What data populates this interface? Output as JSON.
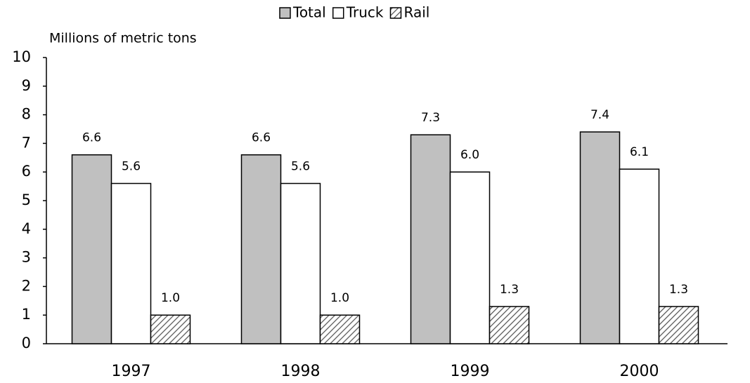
{
  "chart_data": {
    "type": "bar",
    "y_axis_label": "Millions of metric tons",
    "categories": [
      "1997",
      "1998",
      "1999",
      "2000"
    ],
    "series": [
      {
        "name": "Total",
        "color": "#c0c0c0",
        "values": [
          6.6,
          6.6,
          7.3,
          7.4
        ],
        "value_labels": [
          "6.6",
          "6.6",
          "7.3",
          "7.4"
        ]
      },
      {
        "name": "Truck",
        "color": "#ffffff",
        "values": [
          5.6,
          5.6,
          6.0,
          6.1
        ],
        "value_labels": [
          "5.6",
          "5.6",
          "6.0",
          "6.1"
        ]
      },
      {
        "name": "Rail",
        "color": "#555555",
        "hatch": true,
        "values": [
          1.0,
          1.0,
          1.3,
          1.3
        ],
        "value_labels": [
          "1.0",
          "1.0",
          "1.3",
          "1.3"
        ]
      }
    ],
    "ylim": [
      0,
      10
    ],
    "yticks": [
      0,
      1,
      2,
      3,
      4,
      5,
      6,
      7,
      8,
      9,
      10
    ],
    "grid": false,
    "legend": "top"
  }
}
